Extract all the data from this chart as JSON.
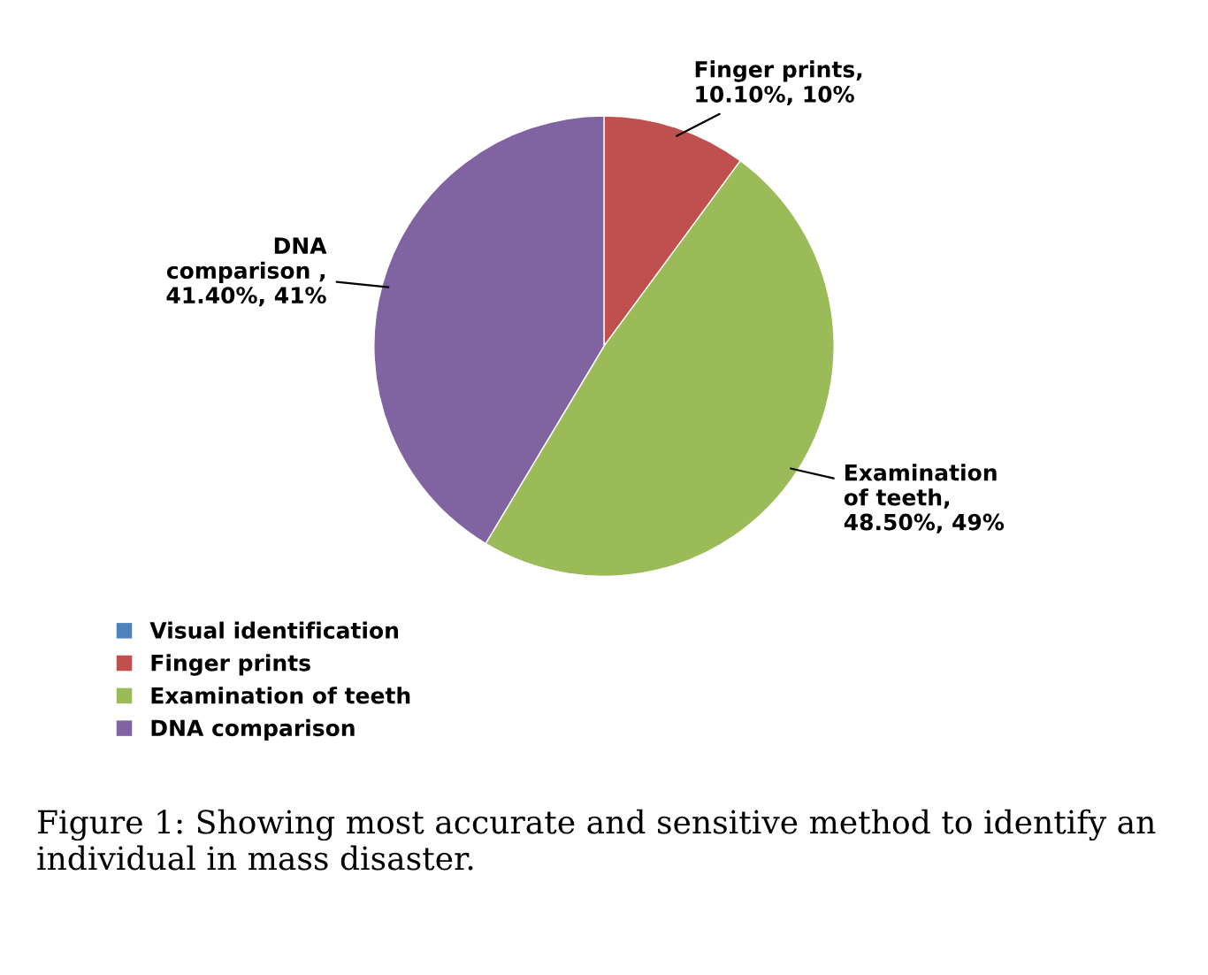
{
  "chart_data": {
    "type": "pie",
    "categories": [
      "Visual identification",
      "Finger prints",
      "Examination of teeth",
      "DNA comparison"
    ],
    "values": [
      0,
      10.1,
      48.5,
      41.4
    ],
    "colors": [
      "#4f81bd",
      "#c0504d",
      "#9bbb59",
      "#8064a2"
    ],
    "value_labels": [
      null,
      "Finger prints,\n10.10%, 10%",
      "Examination\nof teeth,\n48.50%, 49%",
      "DNA\ncomparison ,\n41.40%, 41%"
    ],
    "legend": "bottom left",
    "annotations": [
      "Figure 1: Showing most accurate and sensitive method to identify an individual in mass disaster."
    ]
  }
}
